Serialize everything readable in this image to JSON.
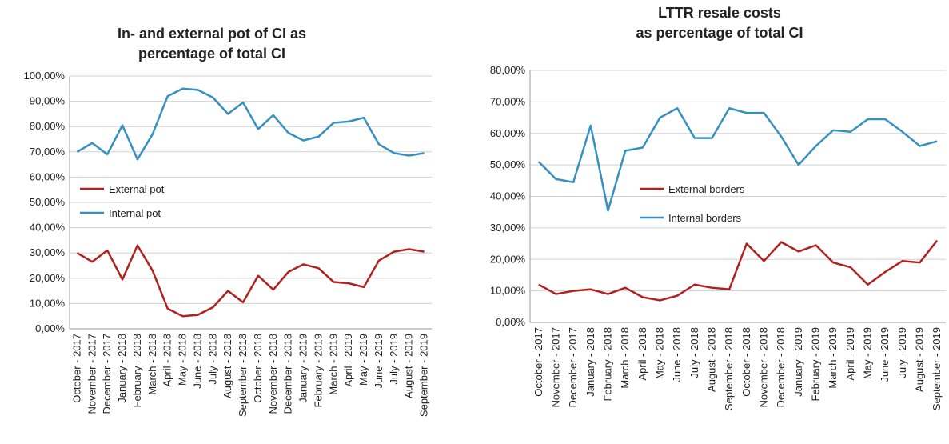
{
  "chart_data": [
    {
      "type": "line",
      "title": [
        "In- and external pot of CI as",
        "percentage of total CI"
      ],
      "categories": [
        "October - 2017",
        "November - 2017",
        "December - 2017",
        "January - 2018",
        "February - 2018",
        "March - 2018",
        "April - 2018",
        "May - 2018",
        "June - 2018",
        "July - 2018",
        "August - 2018",
        "September - 2018",
        "October - 2018",
        "November - 2018",
        "December - 2018",
        "January - 2019",
        "February - 2019",
        "March - 2019",
        "April - 2019",
        "May - 2019",
        "June - 2019",
        "July - 2019",
        "August - 2019",
        "September - 2019"
      ],
      "series": [
        {
          "name": "External pot",
          "color": "#b0221e",
          "values": [
            30,
            26.5,
            31,
            19.5,
            33,
            23,
            8,
            5,
            5.5,
            8.5,
            15,
            10.5,
            21,
            15.5,
            22.5,
            25.5,
            24,
            18.5,
            18,
            16.5,
            27,
            30.5,
            31.5,
            30.5
          ]
        },
        {
          "name": "Internal pot",
          "color": "#3690c0",
          "values": [
            70,
            73.5,
            69,
            80.5,
            67,
            77,
            92,
            95,
            94.5,
            91.5,
            85,
            89.5,
            79,
            84.5,
            77.5,
            74.5,
            76,
            81.5,
            82,
            83.5,
            73,
            69.5,
            68.5,
            69.5
          ]
        }
      ],
      "ylim": [
        0,
        100
      ],
      "yticks": [
        {
          "value": 0,
          "label": "0,00%"
        },
        {
          "value": 10,
          "label": "10,00%"
        },
        {
          "value": 20,
          "label": "20,00%"
        },
        {
          "value": 30,
          "label": "30,00%"
        },
        {
          "value": 40,
          "label": "40,00%"
        },
        {
          "value": 50,
          "label": "50,00%"
        },
        {
          "value": 60,
          "label": "60,00%"
        },
        {
          "value": 70,
          "label": "70,00%"
        },
        {
          "value": 80,
          "label": "80,00%"
        },
        {
          "value": 90,
          "label": "90,00%"
        },
        {
          "value": 100,
          "label": "100,00%"
        }
      ],
      "grid": true
    },
    {
      "type": "line",
      "title": [
        "LTTR resale costs",
        "as percentage of total CI"
      ],
      "categories": [
        "October - 2017",
        "November - 2017",
        "December - 2017",
        "January - 2018",
        "February - 2018",
        "March - 2018",
        "April - 2018",
        "May - 2018",
        "June - 2018",
        "July - 2018",
        "August - 2018",
        "September - 2018",
        "October - 2018",
        "November - 2018",
        "December - 2018",
        "January - 2019",
        "February - 2019",
        "March - 2019",
        "April - 2019",
        "May - 2019",
        "June - 2019",
        "July - 2019",
        "August - 2019",
        "September - 2019"
      ],
      "series": [
        {
          "name": "External borders",
          "color": "#b0221e",
          "values": [
            12,
            9,
            10,
            10.5,
            9,
            11,
            8,
            7,
            8.5,
            12,
            11,
            10.5,
            25,
            19.5,
            25.5,
            22.5,
            24.5,
            19,
            17.5,
            12,
            16,
            19.5,
            19,
            26
          ]
        },
        {
          "name": "Internal borders",
          "color": "#3690c0",
          "values": [
            51,
            45.5,
            44.5,
            62.5,
            35.5,
            54.5,
            55.5,
            65,
            68,
            58.5,
            58.5,
            68,
            66.5,
            66.5,
            59,
            50,
            56,
            61,
            60.5,
            64.5,
            64.5,
            60.5,
            56,
            57.5
          ]
        }
      ],
      "ylim": [
        0,
        80
      ],
      "yticks": [
        {
          "value": 0,
          "label": "0,00%"
        },
        {
          "value": 10,
          "label": "10,00%"
        },
        {
          "value": 20,
          "label": "20,00%"
        },
        {
          "value": 30,
          "label": "30,00%"
        },
        {
          "value": 40,
          "label": "40,00%"
        },
        {
          "value": 50,
          "label": "50,00%"
        },
        {
          "value": 60,
          "label": "60,00%"
        },
        {
          "value": 70,
          "label": "70,00%"
        },
        {
          "value": 80,
          "label": "80,00%"
        }
      ],
      "grid": true
    }
  ]
}
